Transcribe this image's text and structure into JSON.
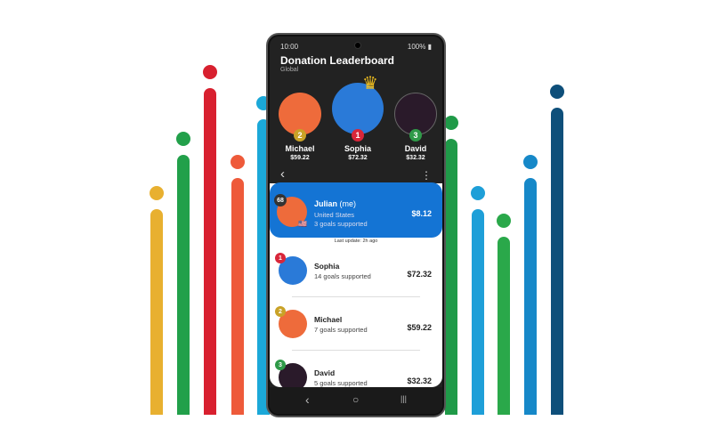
{
  "decor": {
    "bars": [
      {
        "color": "#e8b030",
        "level": 0.57
      },
      {
        "color": "#22a04a",
        "level": 0.71
      },
      {
        "color": "#d8202f",
        "level": 0.88
      },
      {
        "color": "#ee5a3a",
        "level": 0.65
      },
      {
        "color": "#1ba8d8",
        "level": 0.8
      },
      {
        "color": "#1f9a48",
        "level": 0.75
      },
      {
        "color": "#1e9fd8",
        "level": 0.57
      },
      {
        "color": "#2aa84a",
        "level": 0.5
      },
      {
        "color": "#1688c8",
        "level": 0.65
      },
      {
        "color": "#0e4f7a",
        "level": 0.83
      }
    ]
  },
  "status": {
    "time": "10:00",
    "battery": "100%"
  },
  "header": {
    "title": "Donation Leaderboard",
    "subtitle": "Global"
  },
  "podium": [
    {
      "rank": "2",
      "name": "Michael",
      "amount": "$59.22",
      "badge_color": "#c9a227",
      "avatar_color": "#ee6b3b"
    },
    {
      "rank": "1",
      "name": "Sophia",
      "amount": "$72.32",
      "badge_color": "#d8263a",
      "avatar_color": "#2a7ad8"
    },
    {
      "rank": "3",
      "name": "David",
      "amount": "$32.32",
      "badge_color": "#2f9a48",
      "avatar_color": "#2a1a2a"
    }
  ],
  "me": {
    "rank": "68",
    "name": "Julian",
    "tag": "(me)",
    "country": "United States",
    "goals": "3 goals supported",
    "amount": "$8.12"
  },
  "last_update": "Last update: 2h ago",
  "list": [
    {
      "rank": "1",
      "name": "Sophia",
      "goals": "14 goals supported",
      "amount": "$72.32",
      "badge_color": "#d8263a",
      "avatar_color": "#2a7ad8"
    },
    {
      "rank": "2",
      "name": "Michael",
      "goals": "7 goals supported",
      "amount": "$59.22",
      "badge_color": "#c9a227",
      "avatar_color": "#ee6b3b"
    },
    {
      "rank": "3",
      "name": "David",
      "goals": "5 goals supported",
      "amount": "$32.32",
      "badge_color": "#2f9a48",
      "avatar_color": "#2a1a2a"
    }
  ],
  "icons": {
    "back": "‹",
    "more": "⋮",
    "nav_back": "‹",
    "nav_home": "○",
    "nav_recent": "|||"
  }
}
